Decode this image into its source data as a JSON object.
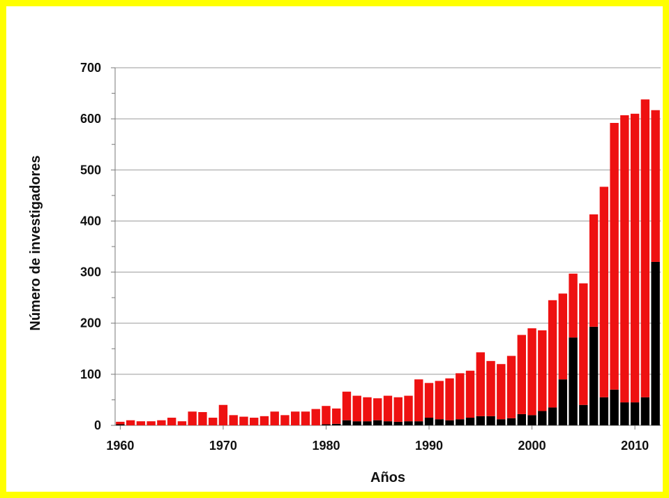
{
  "frame_color": "#ffff00",
  "chart_data": {
    "type": "bar",
    "stacked": true,
    "title": "",
    "xlabel": "Años",
    "ylabel": "Número de investigadores",
    "ylim": [
      0,
      700
    ],
    "yticks": [
      0,
      100,
      200,
      300,
      400,
      500,
      600,
      700
    ],
    "xticks": [
      1960,
      1970,
      1980,
      1990,
      2000,
      2010
    ],
    "grid": true,
    "legend": "none",
    "years": [
      1960,
      1961,
      1962,
      1963,
      1964,
      1965,
      1966,
      1967,
      1968,
      1969,
      1970,
      1971,
      1972,
      1973,
      1974,
      1975,
      1976,
      1977,
      1978,
      1979,
      1980,
      1981,
      1982,
      1983,
      1984,
      1985,
      1986,
      1987,
      1988,
      1989,
      1990,
      1991,
      1992,
      1993,
      1994,
      1995,
      1996,
      1997,
      1998,
      1999,
      2000,
      2001,
      2002,
      2003,
      2004,
      2005,
      2006,
      2007,
      2008,
      2009,
      2010,
      2011,
      2012
    ],
    "series": [
      {
        "color": "#000000",
        "values": [
          2,
          0,
          0,
          0,
          0,
          0,
          0,
          0,
          0,
          0,
          0,
          0,
          0,
          0,
          0,
          0,
          0,
          0,
          0,
          0,
          2,
          3,
          10,
          8,
          8,
          10,
          8,
          7,
          8,
          8,
          15,
          12,
          10,
          12,
          15,
          18,
          18,
          12,
          14,
          22,
          20,
          28,
          35,
          90,
          172,
          40,
          193,
          55,
          70,
          45,
          45,
          55,
          320
        ]
      },
      {
        "color": "#ee1111",
        "values": [
          5,
          10,
          8,
          8,
          10,
          15,
          8,
          27,
          26,
          15,
          40,
          20,
          17,
          15,
          18,
          27,
          20,
          27,
          27,
          32,
          36,
          30,
          56,
          50,
          47,
          43,
          50,
          48,
          50,
          82,
          68,
          75,
          82,
          90,
          92,
          125,
          108,
          108,
          122,
          155,
          170,
          158,
          210,
          168,
          125,
          238,
          220,
          412,
          522,
          562,
          565,
          583,
          297
        ]
      }
    ]
  }
}
